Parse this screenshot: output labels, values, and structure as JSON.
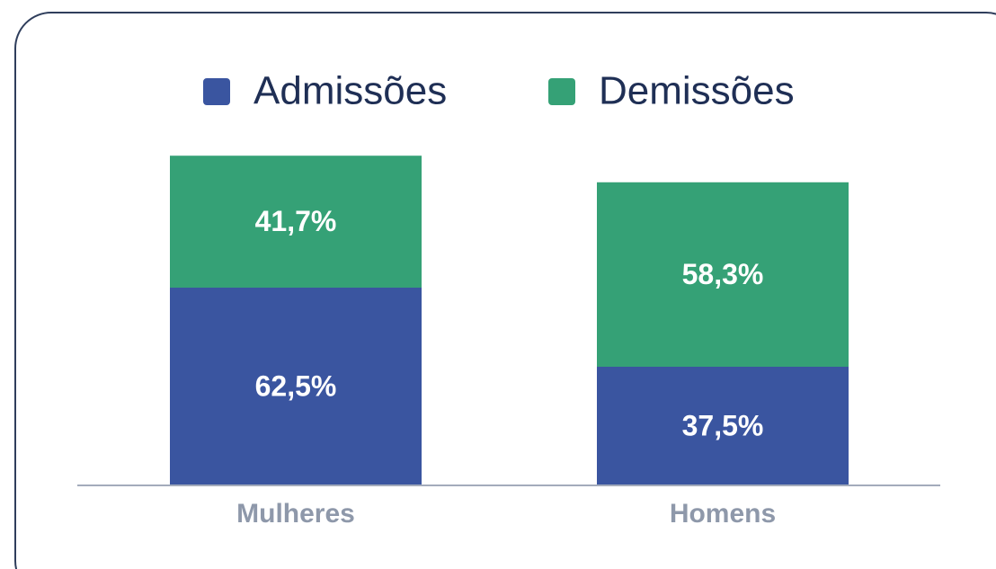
{
  "chart_data": {
    "type": "stacked_bar",
    "categories": [
      "Mulheres",
      "Homens"
    ],
    "series": [
      {
        "name": "Admissões",
        "color": "#3a55a0",
        "values": [
          62.5,
          37.5
        ],
        "value_labels": [
          "62,5%",
          "37,5%"
        ]
      },
      {
        "name": "Demissões",
        "color": "#35a176",
        "values": [
          41.7,
          58.3
        ],
        "value_labels": [
          "41,7%",
          "58,3%"
        ]
      }
    ]
  }
}
